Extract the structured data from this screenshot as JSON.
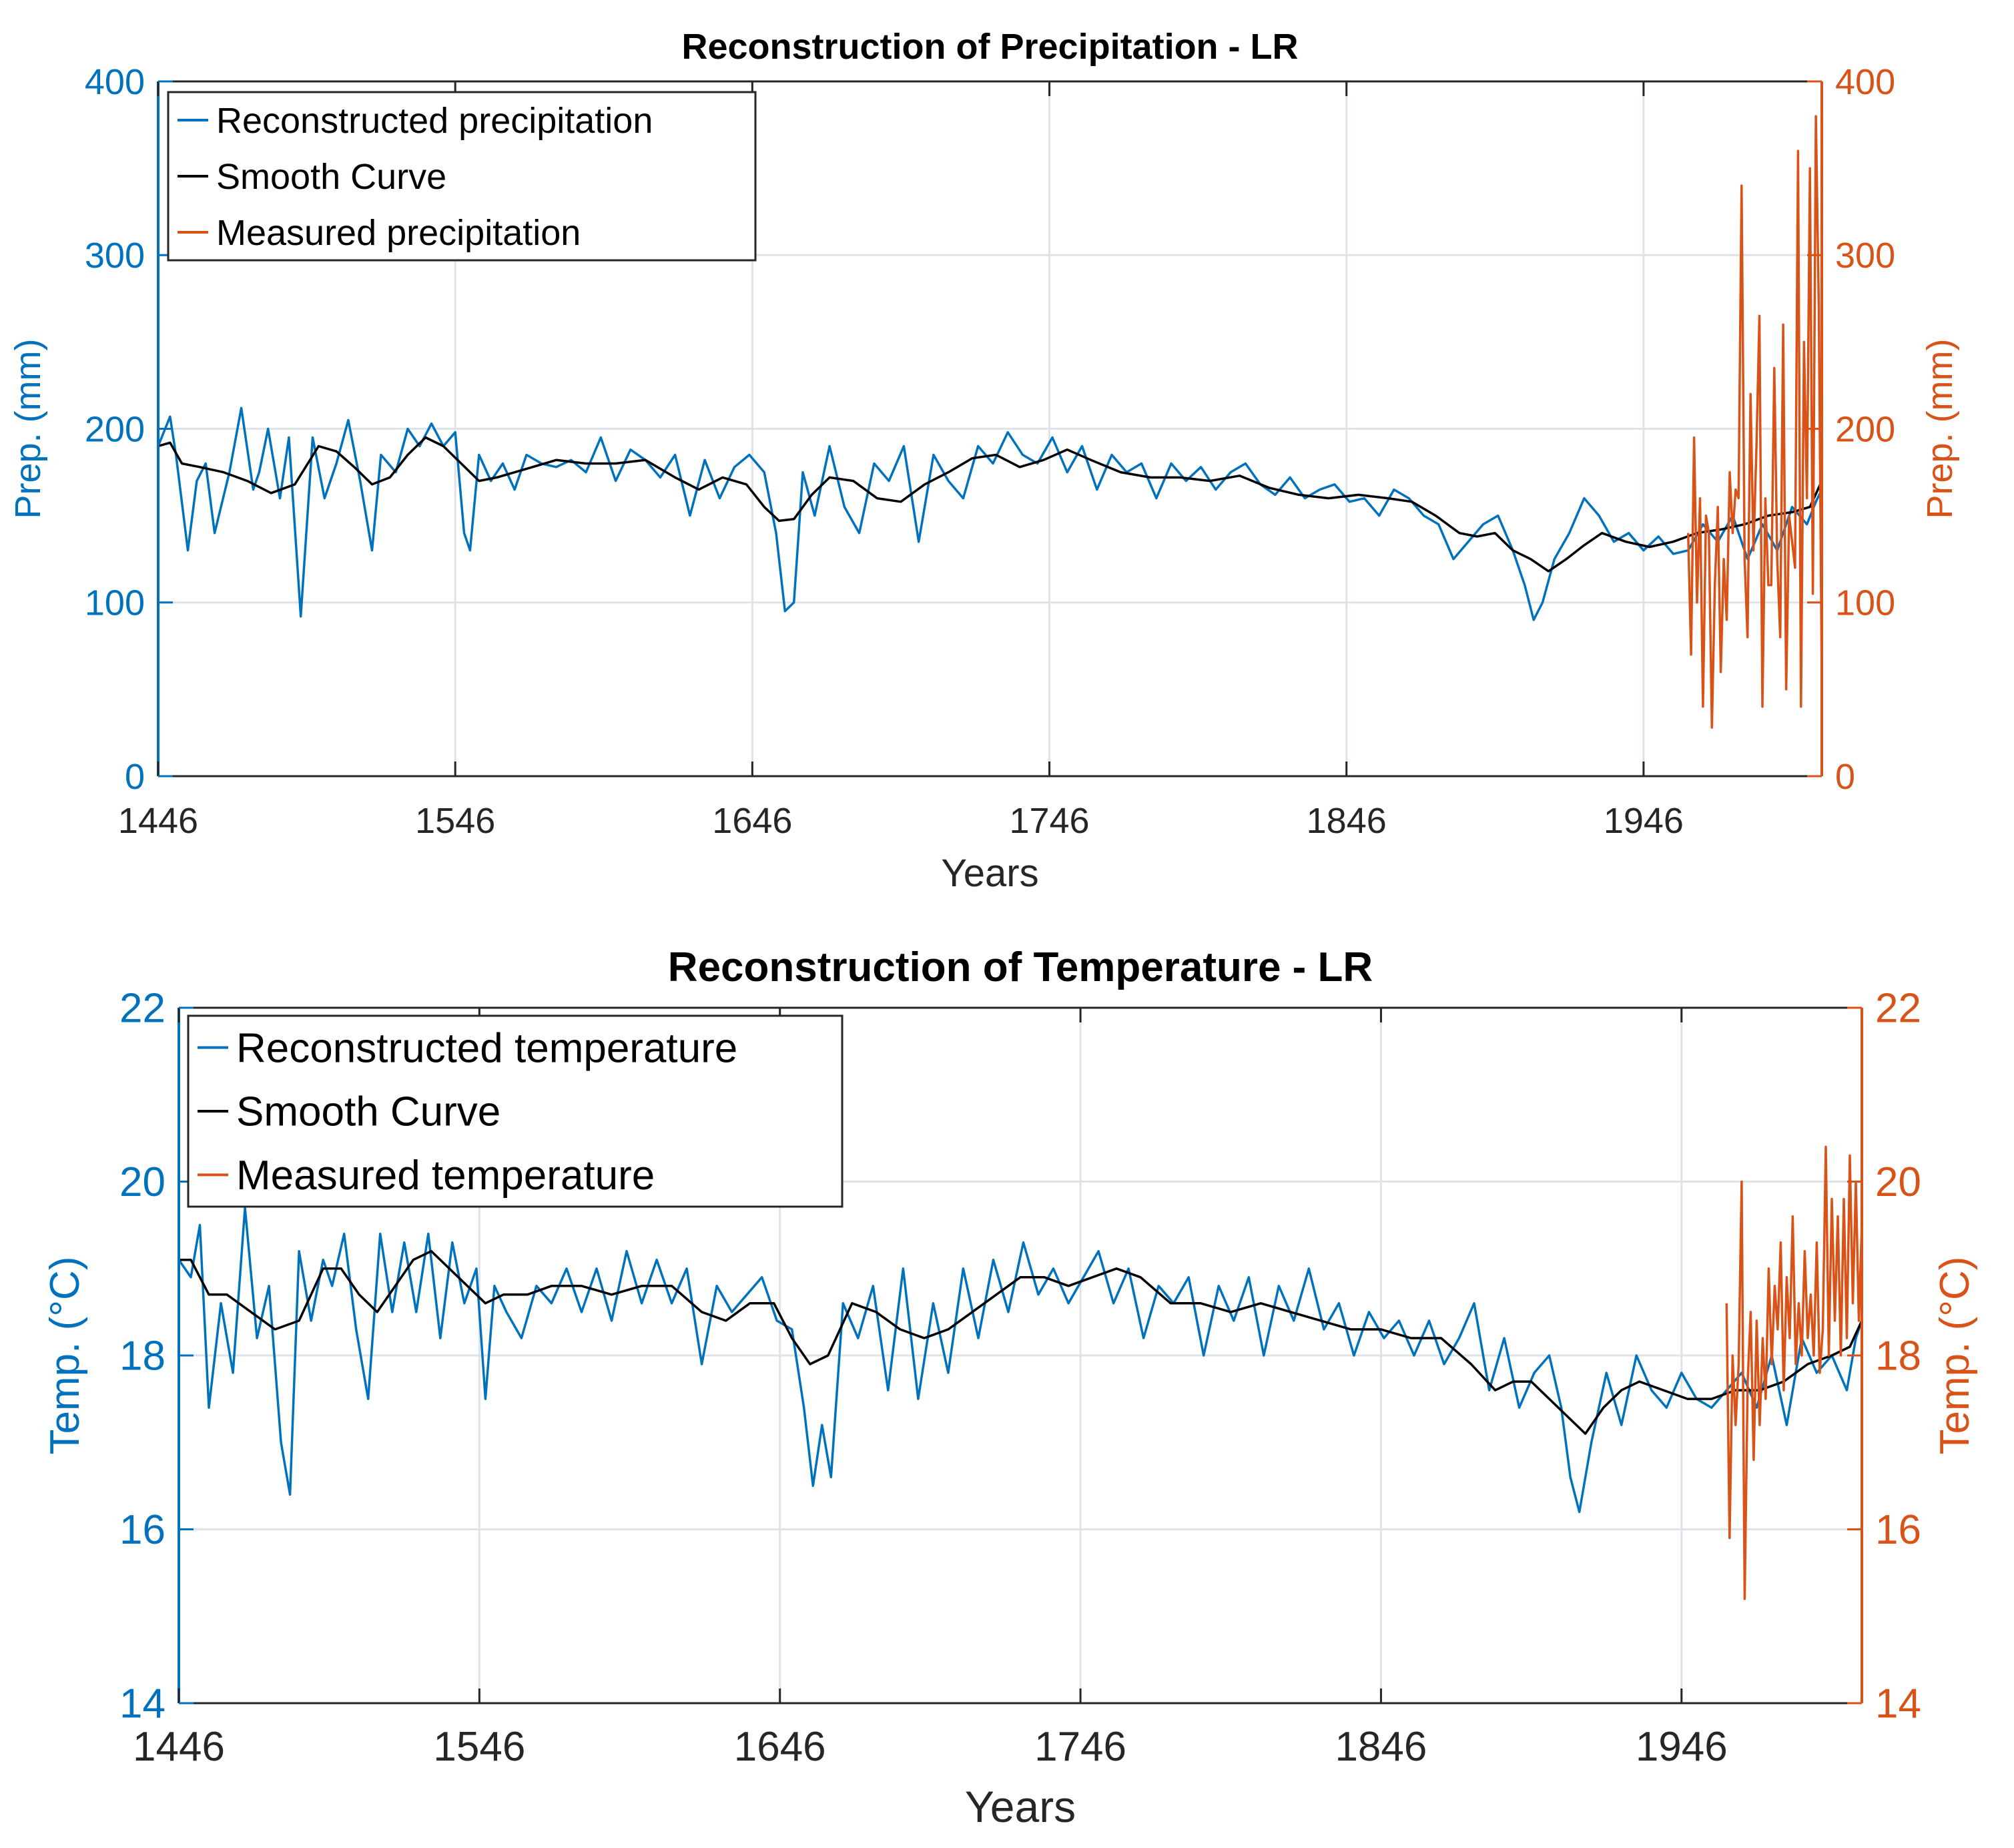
{
  "colors": {
    "reconstructed": "#0072BD",
    "smooth": "#000000",
    "measured": "#D95319",
    "grid": "#dfe3e8",
    "text": "#262626"
  },
  "chart_data": [
    {
      "type": "line",
      "title": "Reconstruction of Precipitation - LR",
      "xlabel": "Years",
      "ylabel_left": "Prep. (mm)",
      "ylabel_right": "Prep. (mm)",
      "xlim": [
        1446,
        2006
      ],
      "ylim": [
        0,
        400
      ],
      "ylim_right": [
        0,
        400
      ],
      "xticks": [
        1446,
        1546,
        1646,
        1746,
        1846,
        1946
      ],
      "yticks": [
        0,
        100,
        200,
        300,
        400
      ],
      "grid": true,
      "legend_position": "top-left",
      "series": [
        {
          "name": "Reconstructed precipitation",
          "axis": "left",
          "x": [
            1446,
            1450,
            1452,
            1456,
            1459,
            1462,
            1465,
            1470,
            1474,
            1478,
            1480,
            1483,
            1487,
            1490,
            1494,
            1498,
            1502,
            1506,
            1510,
            1514,
            1518,
            1521,
            1526,
            1530,
            1534,
            1538,
            1542,
            1546,
            1549,
            1551,
            1554,
            1558,
            1562,
            1566,
            1570,
            1575,
            1580,
            1585,
            1590,
            1595,
            1600,
            1605,
            1610,
            1615,
            1620,
            1625,
            1630,
            1635,
            1640,
            1645,
            1650,
            1654,
            1657,
            1660,
            1663,
            1667,
            1672,
            1677,
            1682,
            1687,
            1692,
            1697,
            1702,
            1707,
            1712,
            1717,
            1722,
            1727,
            1732,
            1737,
            1742,
            1747,
            1752,
            1757,
            1762,
            1767,
            1772,
            1777,
            1782,
            1787,
            1792,
            1797,
            1802,
            1807,
            1812,
            1817,
            1822,
            1827,
            1832,
            1837,
            1842,
            1847,
            1852,
            1857,
            1862,
            1867,
            1872,
            1877,
            1882,
            1887,
            1892,
            1897,
            1902,
            1906,
            1909,
            1912,
            1916,
            1921,
            1926,
            1931,
            1936,
            1941,
            1946,
            1951,
            1956,
            1961,
            1966,
            1971,
            1976,
            1981,
            1986,
            1991,
            1996,
            2001,
            2004,
            2006
          ],
          "y": [
            190,
            207,
            185,
            130,
            170,
            180,
            140,
            175,
            212,
            165,
            175,
            200,
            160,
            195,
            92,
            195,
            160,
            180,
            205,
            170,
            130,
            185,
            175,
            200,
            190,
            203,
            190,
            198,
            140,
            130,
            185,
            170,
            180,
            165,
            185,
            180,
            178,
            182,
            175,
            195,
            170,
            188,
            182,
            172,
            185,
            150,
            182,
            160,
            178,
            185,
            175,
            140,
            95,
            100,
            175,
            150,
            190,
            155,
            140,
            180,
            170,
            190,
            135,
            185,
            170,
            160,
            190,
            180,
            198,
            185,
            180,
            195,
            175,
            190,
            165,
            185,
            175,
            180,
            160,
            180,
            170,
            178,
            165,
            175,
            180,
            168,
            162,
            172,
            160,
            165,
            168,
            158,
            160,
            150,
            165,
            160,
            150,
            145,
            125,
            135,
            145,
            150,
            130,
            110,
            90,
            100,
            125,
            140,
            160,
            150,
            135,
            140,
            130,
            138,
            128,
            130,
            145,
            135,
            150,
            125,
            145,
            130,
            155,
            145,
            158,
            165
          ]
        },
        {
          "name": "Smooth Curve",
          "axis": "left",
          "x": [
            1446,
            1450,
            1454,
            1460,
            1468,
            1476,
            1484,
            1492,
            1500,
            1506,
            1512,
            1518,
            1524,
            1530,
            1536,
            1542,
            1548,
            1554,
            1560,
            1570,
            1580,
            1590,
            1600,
            1610,
            1620,
            1628,
            1636,
            1644,
            1650,
            1655,
            1660,
            1666,
            1672,
            1680,
            1688,
            1696,
            1704,
            1712,
            1720,
            1728,
            1736,
            1744,
            1752,
            1760,
            1770,
            1780,
            1790,
            1800,
            1810,
            1820,
            1830,
            1840,
            1850,
            1860,
            1868,
            1876,
            1884,
            1890,
            1896,
            1902,
            1908,
            1914,
            1920,
            1926,
            1932,
            1940,
            1948,
            1956,
            1964,
            1972,
            1980,
            1988,
            1996,
            2002,
            2006
          ],
          "y": [
            190,
            192,
            180,
            178,
            175,
            170,
            163,
            168,
            190,
            187,
            178,
            168,
            172,
            185,
            195,
            190,
            180,
            170,
            172,
            177,
            182,
            180,
            180,
            182,
            172,
            165,
            172,
            168,
            155,
            147,
            148,
            162,
            172,
            170,
            160,
            158,
            168,
            175,
            183,
            185,
            178,
            182,
            188,
            182,
            175,
            172,
            172,
            170,
            173,
            166,
            162,
            160,
            162,
            160,
            158,
            150,
            140,
            138,
            140,
            130,
            125,
            118,
            125,
            133,
            140,
            135,
            132,
            135,
            140,
            142,
            145,
            150,
            152,
            155,
            170
          ]
        },
        {
          "name": "Measured precipitation",
          "axis": "right",
          "x": [
            1961,
            1962,
            1963,
            1964,
            1965,
            1966,
            1967,
            1968,
            1969,
            1970,
            1971,
            1972,
            1973,
            1974,
            1975,
            1976,
            1977,
            1978,
            1979,
            1980,
            1981,
            1982,
            1983,
            1984,
            1985,
            1986,
            1987,
            1988,
            1989,
            1990,
            1991,
            1992,
            1993,
            1994,
            1995,
            1996,
            1997,
            1998,
            1999,
            2000,
            2001,
            2002,
            2003,
            2004,
            2005,
            2006
          ],
          "y": [
            140,
            70,
            195,
            100,
            160,
            40,
            150,
            140,
            28,
            110,
            155,
            60,
            125,
            90,
            175,
            140,
            165,
            160,
            340,
            125,
            80,
            220,
            130,
            190,
            265,
            40,
            160,
            110,
            110,
            235,
            125,
            80,
            260,
            50,
            150,
            135,
            120,
            360,
            40,
            250,
            160,
            350,
            105,
            380,
            270,
            55
          ]
        }
      ]
    },
    {
      "type": "line",
      "title": "Reconstruction of Temperature - LR",
      "xlabel": "Years",
      "ylabel_left": "Temp. (°C)",
      "ylabel_right": "Temp. (°C)",
      "xlim": [
        1446,
        2006
      ],
      "ylim": [
        14,
        22
      ],
      "ylim_right": [
        14,
        22
      ],
      "xticks": [
        1446,
        1546,
        1646,
        1746,
        1846,
        1946
      ],
      "yticks": [
        14,
        16,
        18,
        20,
        22
      ],
      "grid": true,
      "legend_position": "top-left",
      "series": [
        {
          "name": "Reconstructed temperature",
          "axis": "left",
          "x": [
            1446,
            1450,
            1453,
            1456,
            1460,
            1464,
            1468,
            1472,
            1476,
            1480,
            1483,
            1486,
            1490,
            1494,
            1497,
            1501,
            1505,
            1509,
            1513,
            1517,
            1521,
            1525,
            1529,
            1533,
            1537,
            1541,
            1545,
            1548,
            1551,
            1555,
            1560,
            1565,
            1570,
            1575,
            1580,
            1585,
            1590,
            1595,
            1600,
            1605,
            1610,
            1615,
            1620,
            1625,
            1630,
            1635,
            1640,
            1645,
            1650,
            1654,
            1657,
            1660,
            1663,
            1667,
            1672,
            1677,
            1682,
            1687,
            1692,
            1697,
            1702,
            1707,
            1712,
            1717,
            1722,
            1727,
            1732,
            1737,
            1742,
            1747,
            1752,
            1757,
            1762,
            1767,
            1772,
            1777,
            1782,
            1787,
            1792,
            1797,
            1802,
            1807,
            1812,
            1817,
            1822,
            1827,
            1832,
            1837,
            1842,
            1847,
            1852,
            1857,
            1862,
            1867,
            1872,
            1877,
            1882,
            1887,
            1892,
            1897,
            1902,
            1906,
            1909,
            1912,
            1916,
            1921,
            1926,
            1931,
            1936,
            1941,
            1946,
            1951,
            1956,
            1961,
            1966,
            1971,
            1976,
            1981,
            1986,
            1991,
            1996,
            2001,
            2004,
            2006
          ],
          "y": [
            19.1,
            18.9,
            19.5,
            17.4,
            18.6,
            17.8,
            19.7,
            18.2,
            18.8,
            17.0,
            16.4,
            19.2,
            18.4,
            19.1,
            18.8,
            19.4,
            18.3,
            17.5,
            19.4,
            18.5,
            19.3,
            18.5,
            19.4,
            18.2,
            19.3,
            18.6,
            19.0,
            17.5,
            18.8,
            18.5,
            18.2,
            18.8,
            18.6,
            19.0,
            18.5,
            19.0,
            18.4,
            19.2,
            18.6,
            19.1,
            18.6,
            19.0,
            17.9,
            18.8,
            18.5,
            18.7,
            18.9,
            18.4,
            18.3,
            17.4,
            16.5,
            17.2,
            16.6,
            18.6,
            18.2,
            18.8,
            17.6,
            19.0,
            17.5,
            18.6,
            17.8,
            19.0,
            18.2,
            19.1,
            18.5,
            19.3,
            18.7,
            19.0,
            18.6,
            18.9,
            19.2,
            18.6,
            19.0,
            18.2,
            18.8,
            18.6,
            18.9,
            18.0,
            18.8,
            18.4,
            18.9,
            18.0,
            18.8,
            18.4,
            19.0,
            18.3,
            18.6,
            18.0,
            18.5,
            18.2,
            18.4,
            18.0,
            18.4,
            17.9,
            18.2,
            18.6,
            17.6,
            18.2,
            17.4,
            17.8,
            18.0,
            17.4,
            16.6,
            16.2,
            17.0,
            17.8,
            17.2,
            18.0,
            17.6,
            17.4,
            17.8,
            17.5,
            17.4,
            17.6,
            17.8,
            17.4,
            18.0,
            17.2,
            18.2,
            17.8,
            18.0,
            17.6,
            18.2,
            18.4
          ]
        },
        {
          "name": "Smooth Curve",
          "axis": "left",
          "x": [
            1446,
            1450,
            1456,
            1462,
            1470,
            1478,
            1486,
            1494,
            1500,
            1506,
            1512,
            1518,
            1524,
            1530,
            1536,
            1542,
            1548,
            1554,
            1562,
            1570,
            1580,
            1590,
            1600,
            1610,
            1620,
            1628,
            1636,
            1644,
            1650,
            1656,
            1662,
            1670,
            1678,
            1686,
            1694,
            1702,
            1710,
            1718,
            1726,
            1734,
            1742,
            1750,
            1758,
            1766,
            1776,
            1786,
            1796,
            1806,
            1816,
            1826,
            1836,
            1846,
            1856,
            1866,
            1876,
            1884,
            1890,
            1896,
            1902,
            1908,
            1914,
            1920,
            1926,
            1932,
            1940,
            1948,
            1956,
            1964,
            1972,
            1980,
            1988,
            1996,
            2002,
            2006
          ],
          "y": [
            19.1,
            19.1,
            18.7,
            18.7,
            18.5,
            18.3,
            18.4,
            19.0,
            19.0,
            18.7,
            18.5,
            18.8,
            19.1,
            19.2,
            19.0,
            18.8,
            18.6,
            18.7,
            18.7,
            18.8,
            18.8,
            18.7,
            18.8,
            18.8,
            18.5,
            18.4,
            18.6,
            18.6,
            18.2,
            17.9,
            18.0,
            18.6,
            18.5,
            18.3,
            18.2,
            18.3,
            18.5,
            18.7,
            18.9,
            18.9,
            18.8,
            18.9,
            19.0,
            18.9,
            18.6,
            18.6,
            18.5,
            18.6,
            18.5,
            18.4,
            18.3,
            18.3,
            18.2,
            18.2,
            17.9,
            17.6,
            17.7,
            17.7,
            17.5,
            17.3,
            17.1,
            17.4,
            17.6,
            17.7,
            17.6,
            17.5,
            17.5,
            17.6,
            17.6,
            17.7,
            17.9,
            18.0,
            18.1,
            18.4
          ]
        },
        {
          "name": "Measured temperature",
          "axis": "right",
          "x": [
            1961,
            1962,
            1963,
            1964,
            1965,
            1966,
            1967,
            1968,
            1969,
            1970,
            1971,
            1972,
            1973,
            1974,
            1975,
            1976,
            1977,
            1978,
            1979,
            1980,
            1981,
            1982,
            1983,
            1984,
            1985,
            1986,
            1987,
            1988,
            1989,
            1990,
            1991,
            1992,
            1993,
            1994,
            1995,
            1996,
            1997,
            1998,
            1999,
            2000,
            2001,
            2002,
            2003,
            2004,
            2005,
            2006
          ],
          "y": [
            18.6,
            15.9,
            18.0,
            17.2,
            17.9,
            20.0,
            15.2,
            17.7,
            18.5,
            16.8,
            18.4,
            17.2,
            18.2,
            17.5,
            19.0,
            17.9,
            18.8,
            18.3,
            19.3,
            17.6,
            18.9,
            18.2,
            19.6,
            17.9,
            18.6,
            18.0,
            19.2,
            18.2,
            18.7,
            18.0,
            19.3,
            17.8,
            18.3,
            20.4,
            18.0,
            19.8,
            18.4,
            19.6,
            18.0,
            19.8,
            18.2,
            20.3,
            18.6,
            20.0,
            18.4,
            19.5
          ]
        }
      ]
    }
  ]
}
